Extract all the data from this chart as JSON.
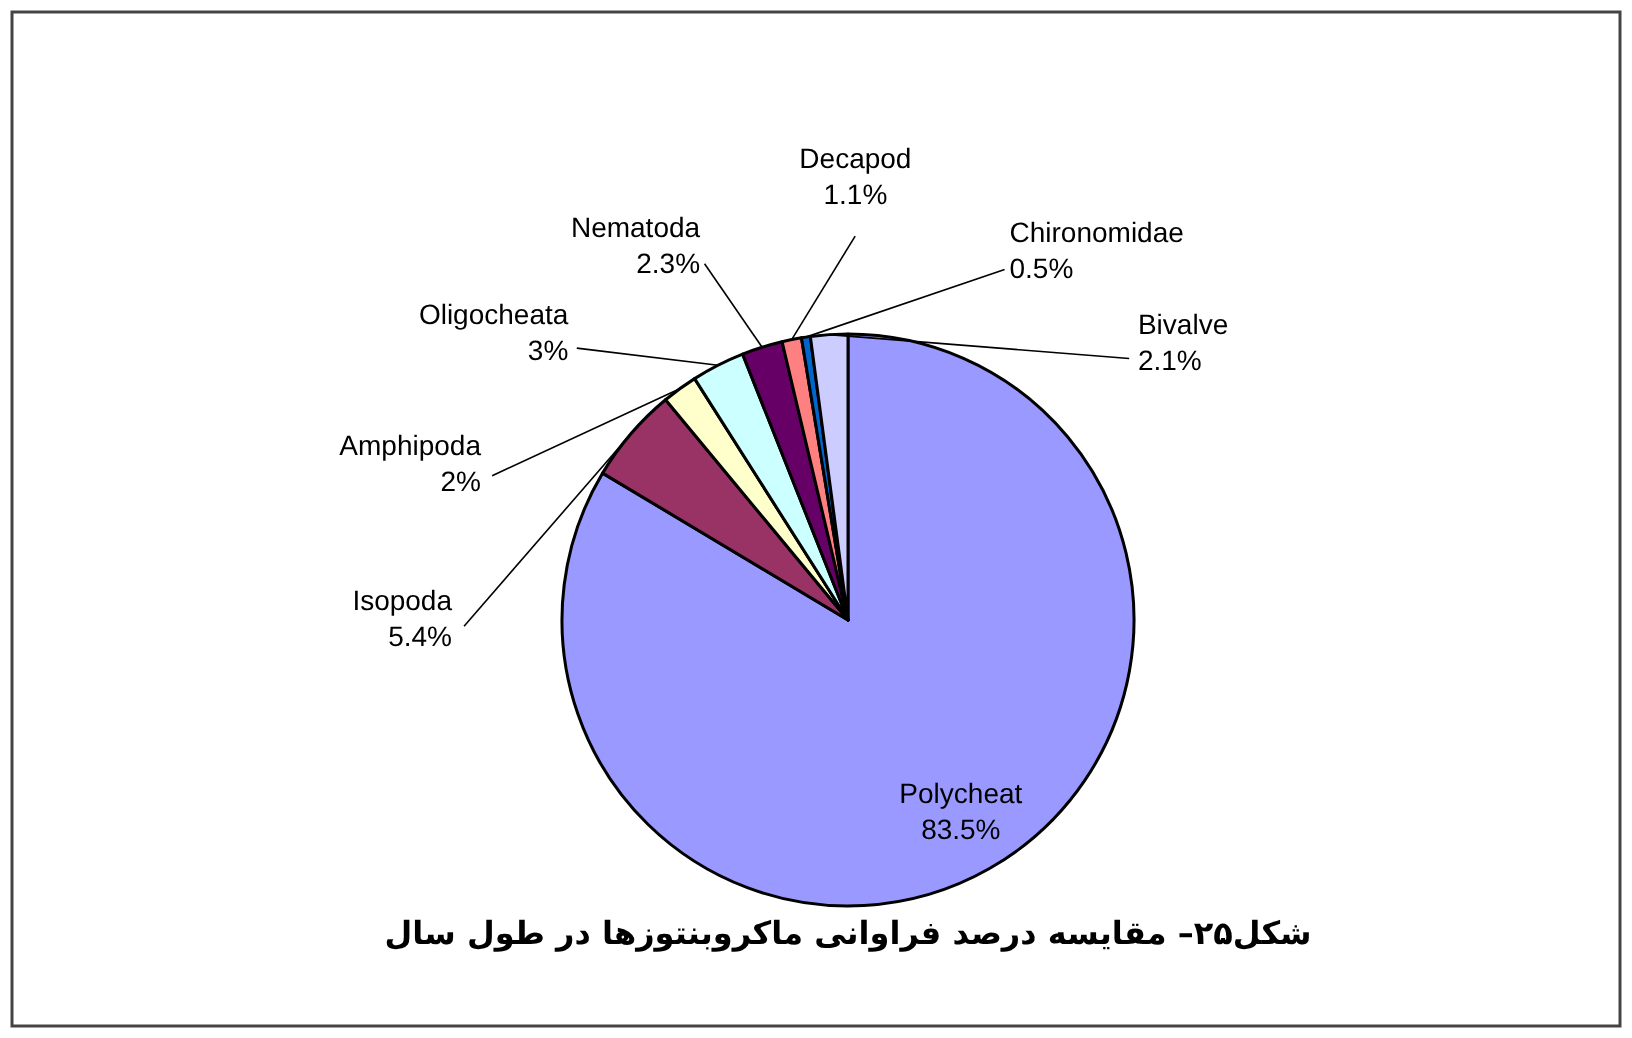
{
  "chart_data": {
    "type": "pie",
    "title": "شکل۲۵– مقایسه درصد فراوانی ماکروبنتوزها در طول سال",
    "categories": [
      "Polycheat",
      "Isopoda",
      "Amphipoda",
      "Oligocheata",
      "Nematoda",
      "Decapod",
      "Chironomidae",
      "Bivalve"
    ],
    "values": [
      83.5,
      5.4,
      2,
      3,
      2.3,
      1.1,
      0.5,
      2.1
    ],
    "value_labels": [
      "83.5%",
      "5.4%",
      "2%",
      "3%",
      "2.3%",
      "1.1%",
      "0.5%",
      "2.1%"
    ],
    "colors": [
      "#9999ff",
      "#993366",
      "#ffffcc",
      "#ccffff",
      "#660066",
      "#ff8080",
      "#0066cc",
      "#ccccff"
    ]
  }
}
